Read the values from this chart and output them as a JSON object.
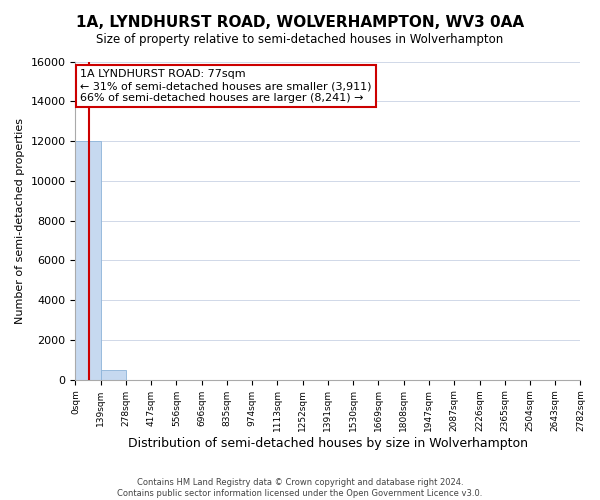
{
  "title": "1A, LYNDHURST ROAD, WOLVERHAMPTON, WV3 0AA",
  "subtitle": "Size of property relative to semi-detached houses in Wolverhampton",
  "xlabel": "Distribution of semi-detached houses by size in Wolverhampton",
  "ylabel": "Number of semi-detached properties",
  "bar_edges": [
    0,
    139,
    278,
    417,
    556,
    696,
    835,
    974,
    1113,
    1252,
    1391,
    1530,
    1669,
    1808,
    1947,
    2087,
    2226,
    2365,
    2504,
    2643,
    2782
  ],
  "bar_heights": [
    12000,
    500,
    0,
    0,
    0,
    0,
    0,
    0,
    0,
    0,
    0,
    0,
    0,
    0,
    0,
    0,
    0,
    0,
    0,
    0
  ],
  "bar_color": "#c6d9f0",
  "bar_edgecolor": "#8db4d9",
  "property_size": 77,
  "annotation_title": "1A LYNDHURST ROAD: 77sqm",
  "annotation_line1": "← 31% of semi-detached houses are smaller (3,911)",
  "annotation_line2": "66% of semi-detached houses are larger (8,241) →",
  "annotation_box_facecolor": "#ffffff",
  "annotation_box_edgecolor": "#cc0000",
  "vline_color": "#cc0000",
  "ylim": [
    0,
    16000
  ],
  "xlim": [
    0,
    2782
  ],
  "yticks": [
    0,
    2000,
    4000,
    6000,
    8000,
    10000,
    12000,
    14000,
    16000
  ],
  "xtick_labels": [
    "0sqm",
    "139sqm",
    "278sqm",
    "417sqm",
    "556sqm",
    "696sqm",
    "835sqm",
    "974sqm",
    "1113sqm",
    "1252sqm",
    "1391sqm",
    "1530sqm",
    "1669sqm",
    "1808sqm",
    "1947sqm",
    "2087sqm",
    "2226sqm",
    "2365sqm",
    "2504sqm",
    "2643sqm",
    "2782sqm"
  ],
  "footer_line1": "Contains HM Land Registry data © Crown copyright and database right 2024.",
  "footer_line2": "Contains public sector information licensed under the Open Government Licence v3.0.",
  "background_color": "#ffffff",
  "grid_color": "#d0d8e8",
  "spine_color": "#aaaaaa"
}
